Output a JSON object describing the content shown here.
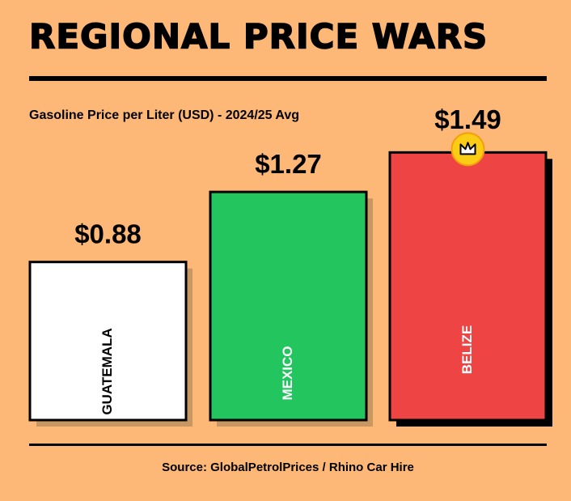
{
  "chart_data": {
    "type": "bar",
    "title": "REGIONAL PRICE WARS",
    "subtitle": "Gasoline Price per Liter (USD) - 2024/25 Avg",
    "source": "Source: GlobalPetrolPrices / Rhino Car Hire",
    "categories": [
      "GUATEMALA",
      "MEXICO",
      "BELIZE"
    ],
    "values": [
      0.88,
      1.27,
      1.49
    ],
    "value_labels": [
      "$0.88",
      "$1.27",
      "$1.49"
    ],
    "colors": [
      "#ffffff",
      "#22c55e",
      "#ef4444"
    ],
    "ylim": [
      0,
      1.55
    ]
  }
}
